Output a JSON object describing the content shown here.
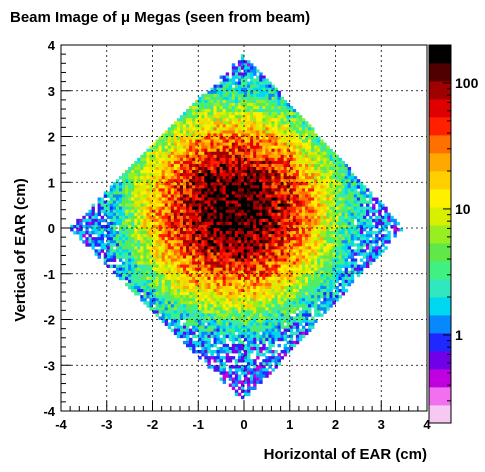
{
  "chart_data": {
    "type": "heatmap",
    "title": "Beam Image of μ Megas (seen from beam)",
    "xlabel": "Horizontal of EAR (cm)",
    "ylabel": "Vertical of EAR (cm)",
    "xlim": [
      -4,
      4
    ],
    "ylim": [
      -4,
      4
    ],
    "xticks": [
      "-4",
      "-3",
      "-2",
      "-1",
      "0",
      "1",
      "2",
      "3",
      "4"
    ],
    "yticks": [
      "-4",
      "-3",
      "-2",
      "-1",
      "0",
      "1",
      "2",
      "3",
      "4"
    ],
    "grid": true,
    "colorbar": {
      "scale": "log",
      "range": [
        0.2,
        200
      ],
      "tick_values": [
        100,
        10,
        1
      ],
      "tick_labels": [
        "100",
        "10",
        "1"
      ]
    },
    "distribution": {
      "shape": "diamond",
      "diamond_vertices": [
        [
          0,
          3.8
        ],
        [
          3.5,
          0
        ],
        [
          0,
          -3.8
        ],
        [
          -3.8,
          0
        ]
      ],
      "peak_center": [
        -0.2,
        0.4
      ],
      "peak_value": 150,
      "background_value": 1
    }
  }
}
